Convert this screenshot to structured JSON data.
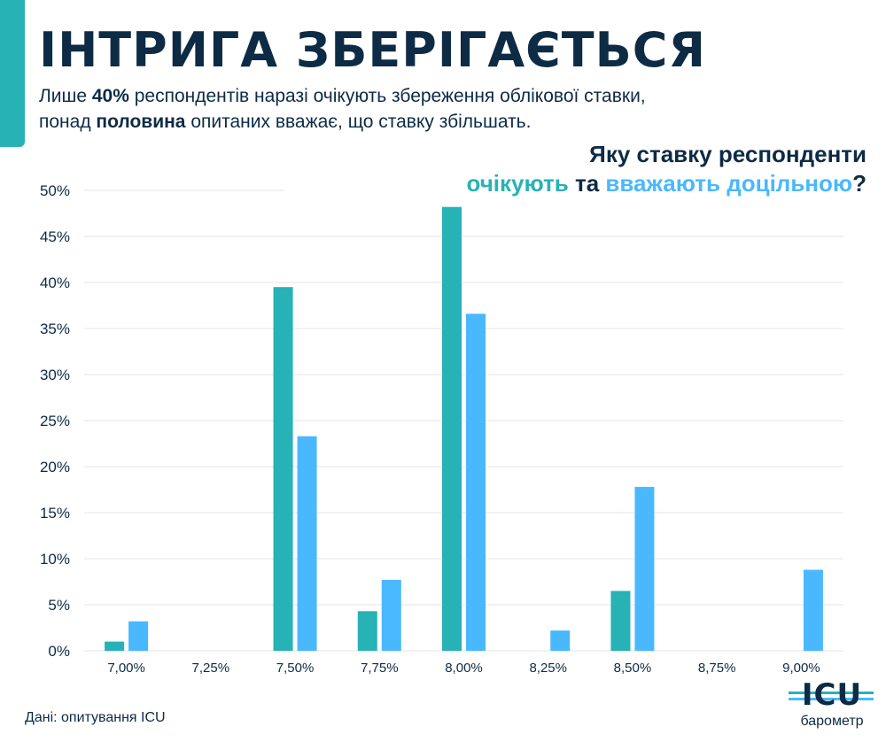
{
  "header": {
    "title": "ІНТРИГА ЗБЕРІГАЄТЬСЯ",
    "subtitle_line1": {
      "before": "Лише ",
      "bold": "40%",
      "after": " респондентів наразі очікують збереження облікової ставки,"
    },
    "subtitle_line2": {
      "before": "понад ",
      "bold": "половина",
      "after": " опитаних вважає, що ставку збільшать."
    }
  },
  "question": {
    "line1": "Яку ставку респонденти",
    "word_expected": "очікують",
    "connector": " та ",
    "word_appropriate": "вважають доцільною",
    "end": "?"
  },
  "colors": {
    "expected": "#27b2b5",
    "appropriate": "#49b8ff",
    "text": "#0d2b45",
    "grid": "#e6e6e6"
  },
  "chart_data": {
    "type": "bar",
    "categories": [
      "7,00%",
      "7,25%",
      "7,50%",
      "7,75%",
      "8,00%",
      "8,25%",
      "8,50%",
      "8,75%",
      "9,00%"
    ],
    "series": [
      {
        "name": "очікують",
        "values": [
          1,
          0,
          39.5,
          4.3,
          48.2,
          0,
          6.5,
          0,
          0
        ]
      },
      {
        "name": "вважають доцільною",
        "values": [
          3.2,
          0,
          23.3,
          7.7,
          36.6,
          2.2,
          17.8,
          0,
          8.8
        ]
      }
    ],
    "yticks": [
      "0%",
      "5%",
      "10%",
      "15%",
      "20%",
      "25%",
      "30%",
      "35%",
      "40%",
      "45%",
      "50%"
    ],
    "ylim": [
      0,
      50
    ],
    "grid": true
  },
  "footer": {
    "source": "Дані: опитування ICU",
    "logo_text": "ICU",
    "logo_sub": "барометр"
  }
}
